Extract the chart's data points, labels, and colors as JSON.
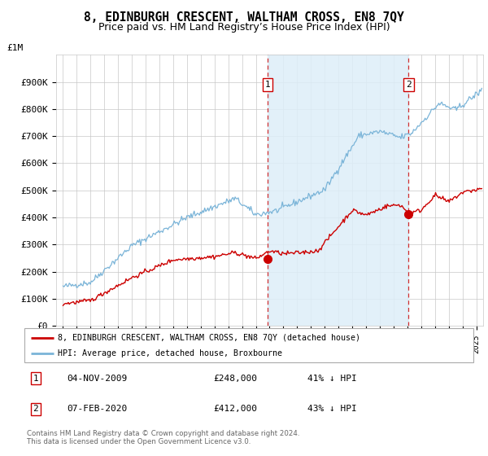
{
  "title": "8, EDINBURGH CRESCENT, WALTHAM CROSS, EN8 7QY",
  "subtitle": "Price paid vs. HM Land Registry’s House Price Index (HPI)",
  "title_fontsize": 10.5,
  "subtitle_fontsize": 9,
  "hpi_color": "#7ab4d8",
  "hpi_fill_color": "#ddeef8",
  "price_color": "#cc0000",
  "marker_color": "#cc0000",
  "sale1_date_num": 2009.84,
  "sale1_price": 248000,
  "sale2_date_num": 2020.09,
  "sale2_price": 412000,
  "ylabel_ticks": [
    "£0",
    "£100K",
    "£200K",
    "£300K",
    "£400K",
    "£500K",
    "£600K",
    "£700K",
    "£800K",
    "£900K"
  ],
  "ytick_vals": [
    0,
    100000,
    200000,
    300000,
    400000,
    500000,
    600000,
    700000,
    800000,
    900000
  ],
  "ylim": [
    0,
    1000000
  ],
  "xlim_start": 1994.5,
  "xlim_end": 2025.5,
  "grid_color": "#c8c8c8",
  "background_color": "#ffffff",
  "legend_line1": "8, EDINBURGH CRESCENT, WALTHAM CROSS, EN8 7QY (detached house)",
  "legend_line2": "HPI: Average price, detached house, Broxbourne",
  "table_row1": [
    "1",
    "04-NOV-2009",
    "£248,000",
    "41% ↓ HPI"
  ],
  "table_row2": [
    "2",
    "07-FEB-2020",
    "£412,000",
    "43% ↓ HPI"
  ],
  "footer": "Contains HM Land Registry data © Crown copyright and database right 2024.\nThis data is licensed under the Open Government Licence v3.0."
}
